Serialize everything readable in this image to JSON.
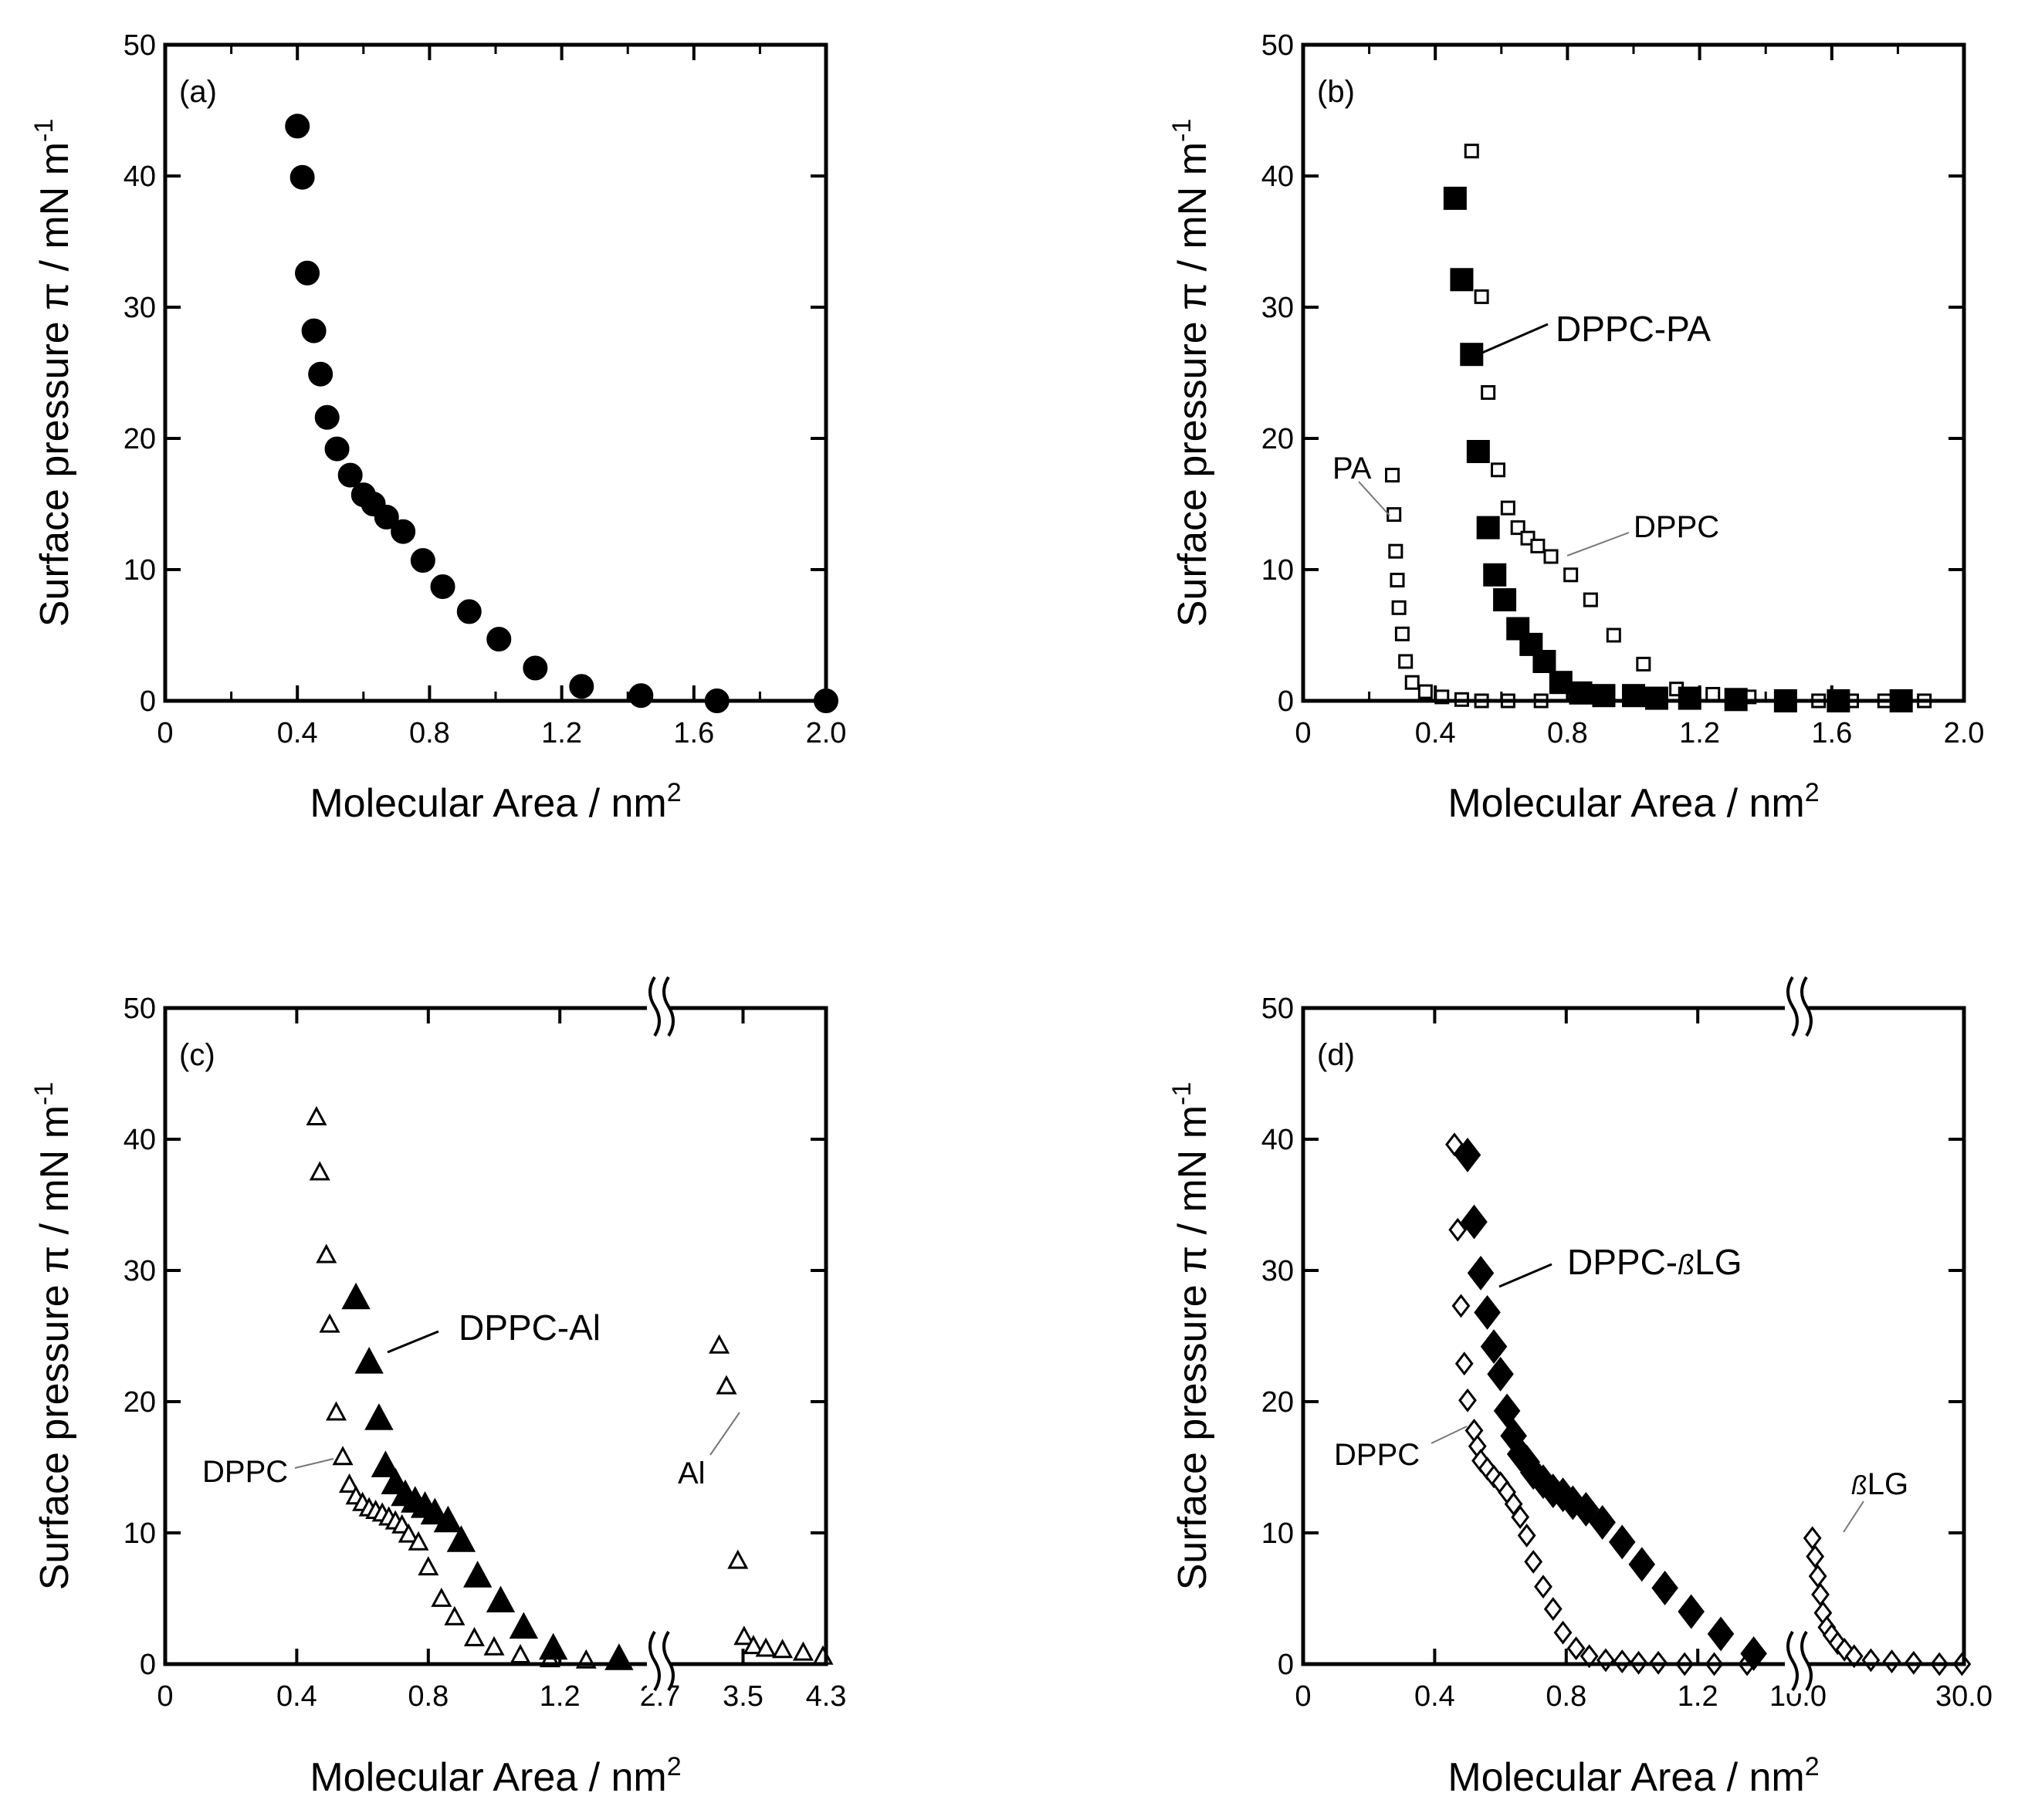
{
  "chart_data": [
    {
      "id": "a",
      "type": "scatter",
      "panel_label": "(a)",
      "xlabel": "Molecular Area / nm",
      "xlabel_sup": "2",
      "ylabel": "Surface pressure π / mN m",
      "ylabel_sup": "-1",
      "xlim": [
        0,
        2.0
      ],
      "ylim": [
        0,
        50
      ],
      "x_ticks": [
        "0",
        "0.4",
        "0.8",
        "1.2",
        "1.6",
        "2.0"
      ],
      "y_ticks": [
        "0",
        "10",
        "20",
        "30",
        "40",
        "50"
      ],
      "series": [
        {
          "name": "DPPC-PA",
          "marker": "circle",
          "filled": true,
          "x": [
            0.4,
            0.415,
            0.43,
            0.45,
            0.47,
            0.49,
            0.52,
            0.56,
            0.6,
            0.63,
            0.67,
            0.72,
            0.78,
            0.84,
            0.92,
            1.01,
            1.12,
            1.26,
            1.44,
            1.67,
            2.0
          ],
          "y": [
            43.8,
            39.9,
            32.6,
            28.2,
            24.9,
            21.6,
            19.2,
            17.2,
            15.7,
            15.0,
            14.0,
            12.9,
            10.7,
            8.7,
            6.8,
            4.7,
            2.5,
            1.1,
            0.4,
            0.0,
            0.0
          ]
        }
      ],
      "annotations": []
    },
    {
      "id": "b",
      "type": "scatter",
      "panel_label": "(b)",
      "xlabel": "Molecular Area / nm",
      "xlabel_sup": "2",
      "ylabel": "Surface pressure π / mN m",
      "ylabel_sup": "-1",
      "xlim": [
        0,
        2.0
      ],
      "ylim": [
        0,
        50
      ],
      "x_ticks": [
        "0",
        "0.4",
        "0.8",
        "1.2",
        "1.6",
        "2.0"
      ],
      "y_ticks": [
        "0",
        "10",
        "20",
        "30",
        "40",
        "50"
      ],
      "series": [
        {
          "name": "DPPC-PA",
          "marker": "square",
          "filled": true,
          "x": [
            0.46,
            0.48,
            0.51,
            0.53,
            0.56,
            0.58,
            0.61,
            0.65,
            0.69,
            0.73,
            0.78,
            0.84,
            0.91,
            1.0,
            1.07,
            1.17,
            1.31,
            1.46,
            1.62,
            1.81
          ],
          "y": [
            38.3,
            32.1,
            26.4,
            19.0,
            13.2,
            9.6,
            7.7,
            5.5,
            4.3,
            3.0,
            1.4,
            0.6,
            0.4,
            0.4,
            0.2,
            0.2,
            0.1,
            0.0,
            0.0,
            0.0
          ]
        },
        {
          "name": "DPPC",
          "marker": "square",
          "filled": false,
          "x": [
            0.51,
            0.54,
            0.56,
            0.59,
            0.62,
            0.65,
            0.68,
            0.71,
            0.75,
            0.81,
            0.87,
            0.94,
            1.03,
            1.13,
            1.24,
            1.35,
            1.46,
            1.56,
            1.66,
            1.76,
            1.88
          ],
          "y": [
            41.9,
            30.8,
            23.5,
            17.6,
            14.7,
            13.2,
            12.4,
            11.8,
            11.0,
            9.6,
            7.7,
            5.0,
            2.8,
            0.9,
            0.5,
            0.3,
            0.1,
            0.0,
            0.0,
            0.0,
            0.0
          ]
        },
        {
          "name": "PA",
          "marker": "square",
          "filled": false,
          "x": [
            0.27,
            0.275,
            0.28,
            0.285,
            0.29,
            0.3,
            0.31,
            0.33,
            0.37,
            0.42,
            0.48,
            0.54,
            0.62,
            0.72
          ],
          "y": [
            17.2,
            14.2,
            11.4,
            9.2,
            7.1,
            5.1,
            3.0,
            1.4,
            0.7,
            0.3,
            0.1,
            0.0,
            0.0,
            0.0
          ]
        }
      ],
      "annotations": [
        {
          "text": "DPPC-PA",
          "series": "DPPC-PA"
        },
        {
          "text": "DPPC",
          "series": "DPPC"
        },
        {
          "text": "PA",
          "series": "PA"
        }
      ]
    },
    {
      "id": "c",
      "type": "scatter",
      "panel_label": "(c)",
      "xlabel": "Molecular Area / nm",
      "xlabel_sup": "2",
      "ylabel": "Surface pressure π / mN m",
      "ylabel_sup": "-1",
      "xlim_left": [
        0,
        1.5
      ],
      "xlim_right": [
        2.7,
        4.3
      ],
      "ylim": [
        0,
        50
      ],
      "axis_break": true,
      "x_ticks": [
        "0",
        "0.4",
        "0.8",
        "1.2",
        "2.7",
        "3.5",
        "4.3"
      ],
      "y_ticks": [
        "0",
        "10",
        "20",
        "30",
        "40",
        "50"
      ],
      "series": [
        {
          "name": "DPPC-Al",
          "marker": "triangle",
          "filled": true,
          "segment": "left",
          "x": [
            0.58,
            0.62,
            0.65,
            0.67,
            0.7,
            0.73,
            0.76,
            0.79,
            0.82,
            0.86,
            0.9,
            0.95,
            1.02,
            1.09,
            1.18,
            1.38
          ],
          "y": [
            27.8,
            22.9,
            18.6,
            15.0,
            13.7,
            12.8,
            12.3,
            11.9,
            11.4,
            10.8,
            9.3,
            6.6,
            4.7,
            2.7,
            1.1,
            0.3
          ]
        },
        {
          "name": "DPPC",
          "marker": "triangle",
          "filled": false,
          "segment": "left",
          "x": [
            0.46,
            0.47,
            0.49,
            0.5,
            0.52,
            0.54,
            0.56,
            0.58,
            0.6,
            0.62,
            0.64,
            0.66,
            0.68,
            0.7,
            0.72,
            0.74,
            0.77,
            0.8,
            0.84,
            0.88,
            0.94,
            1.0,
            1.08,
            1.17,
            1.28
          ],
          "y": [
            41.6,
            37.4,
            31.1,
            25.8,
            19.1,
            15.7,
            13.6,
            12.7,
            12.2,
            11.8,
            11.6,
            11.4,
            11.1,
            10.8,
            10.5,
            9.8,
            9.2,
            7.3,
            4.9,
            3.5,
            1.9,
            1.2,
            0.6,
            0.3,
            0.2
          ]
        },
        {
          "name": "Al",
          "marker": "triangle",
          "filled": false,
          "segment": "right",
          "x": [
            3.27,
            3.34,
            3.45,
            3.51,
            3.6,
            3.72,
            3.88,
            4.08,
            4.27
          ],
          "y": [
            24.2,
            21.1,
            7.8,
            2.0,
            1.3,
            1.1,
            1.0,
            0.8,
            0.5
          ]
        }
      ],
      "annotations": [
        {
          "text": "DPPC-Al",
          "series": "DPPC-Al"
        },
        {
          "text": "DPPC",
          "series": "DPPC"
        },
        {
          "text": "Al",
          "series": "Al"
        }
      ]
    },
    {
      "id": "d",
      "type": "scatter",
      "panel_label": "(d)",
      "xlabel": "Molecular Area / nm",
      "xlabel_sup": "2",
      "ylabel": "Surface pressure π / mN m",
      "ylabel_sup": "-1",
      "xlim_left": [
        0,
        1.5
      ],
      "xlim_right": [
        10.0,
        30.0
      ],
      "ylim": [
        0,
        50
      ],
      "axis_break": true,
      "x_ticks": [
        "0",
        "0.4",
        "0.8",
        "1.2",
        "10.0",
        "30.0"
      ],
      "y_ticks": [
        "0",
        "10",
        "20",
        "30",
        "40",
        "50"
      ],
      "series": [
        {
          "name": "DPPC-βLG",
          "marker": "diamond",
          "filled": true,
          "segment": "left",
          "x": [
            0.5,
            0.52,
            0.54,
            0.56,
            0.58,
            0.6,
            0.62,
            0.64,
            0.66,
            0.68,
            0.7,
            0.73,
            0.76,
            0.79,
            0.82,
            0.86,
            0.91,
            0.97,
            1.03,
            1.1,
            1.18,
            1.27,
            1.37
          ],
          "y": [
            38.8,
            33.7,
            29.8,
            26.8,
            24.2,
            22.1,
            19.3,
            17.4,
            16.0,
            15.4,
            14.6,
            13.9,
            13.2,
            12.9,
            12.3,
            11.8,
            10.8,
            9.3,
            7.6,
            5.8,
            4.0,
            2.3,
            0.8
          ]
        },
        {
          "name": "DPPC",
          "marker": "diamond",
          "filled": false,
          "segment": "left",
          "x": [
            0.46,
            0.47,
            0.48,
            0.49,
            0.5,
            0.52,
            0.53,
            0.54,
            0.56,
            0.58,
            0.6,
            0.62,
            0.64,
            0.66,
            0.68,
            0.7,
            0.73,
            0.76,
            0.79,
            0.83,
            0.87,
            0.92,
            0.97,
            1.02,
            1.08,
            1.16,
            1.25,
            1.35
          ],
          "y": [
            39.6,
            33.1,
            27.3,
            22.9,
            20.1,
            17.8,
            16.6,
            15.5,
            14.9,
            14.3,
            13.8,
            13.1,
            12.2,
            11.2,
            9.8,
            7.8,
            5.9,
            4.2,
            2.4,
            1.2,
            0.6,
            0.3,
            0.2,
            0.1,
            0.1,
            0.0,
            0.0,
            0.0
          ]
        },
        {
          "name": "βLG",
          "marker": "diamond",
          "filled": false,
          "segment": "right",
          "x": [
            11.0,
            11.2,
            11.4,
            11.6,
            11.8,
            12.1,
            12.5,
            13.0,
            13.6,
            14.5,
            16.2,
            18.6,
            21.5,
            25.5,
            29.6
          ],
          "y": [
            9.6,
            8.2,
            6.7,
            5.3,
            3.9,
            2.8,
            2.2,
            1.6,
            1.1,
            0.6,
            0.3,
            0.2,
            0.1,
            0.0,
            0.0
          ]
        }
      ],
      "annotations": [
        {
          "text": "DPPC-",
          "greek": "ß",
          "text_end": "LG",
          "series": "DPPC-βLG"
        },
        {
          "text": "DPPC",
          "series": "DPPC"
        },
        {
          "text": "LG",
          "greek": "ß",
          "series": "βLG"
        }
      ]
    }
  ]
}
